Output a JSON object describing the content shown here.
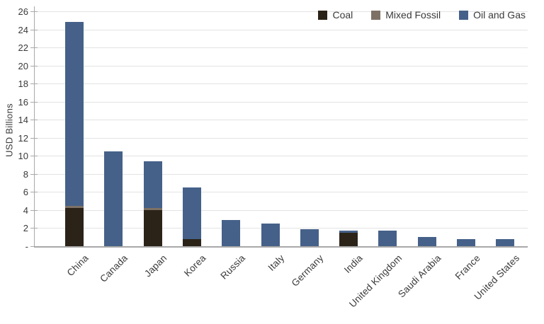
{
  "chart_data": {
    "type": "bar",
    "stacked": true,
    "title": "",
    "xlabel": "",
    "ylabel": "USD Billions",
    "ylim": [
      0,
      26
    ],
    "ytick_step": 2,
    "zero_tick_label": "-",
    "grid": "horizontal",
    "legend_position": "top-right",
    "categories": [
      "China",
      "Canada",
      "Japan",
      "Korea",
      "Russia",
      "Italy",
      "Germany",
      "India",
      "United Kingdom",
      "Saudi Arabia",
      "France",
      "United States"
    ],
    "series": [
      {
        "name": "Coal",
        "color": "#2b2318",
        "values": [
          4.2,
          0,
          4.0,
          0.8,
          0,
          0,
          0,
          1.5,
          0,
          0,
          0,
          0
        ]
      },
      {
        "name": "Mixed Fossil",
        "color": "#7d7166",
        "values": [
          0.3,
          0,
          0.2,
          0,
          0,
          0,
          0,
          0,
          0,
          0,
          0,
          0
        ]
      },
      {
        "name": "Oil and Gas",
        "color": "#456189",
        "values": [
          20.3,
          10.5,
          5.2,
          5.7,
          2.9,
          2.5,
          1.9,
          0.2,
          1.7,
          1.0,
          0.8,
          0.8
        ]
      }
    ],
    "totals": [
      24.8,
      10.5,
      9.4,
      6.5,
      2.9,
      2.5,
      1.9,
      1.7,
      1.7,
      1.0,
      0.8,
      0.8
    ]
  },
  "colors": {
    "gridline": "#e3e3e3",
    "axis": "#a9a9a9",
    "text": "#3a3a3a",
    "background": "#ffffff"
  }
}
